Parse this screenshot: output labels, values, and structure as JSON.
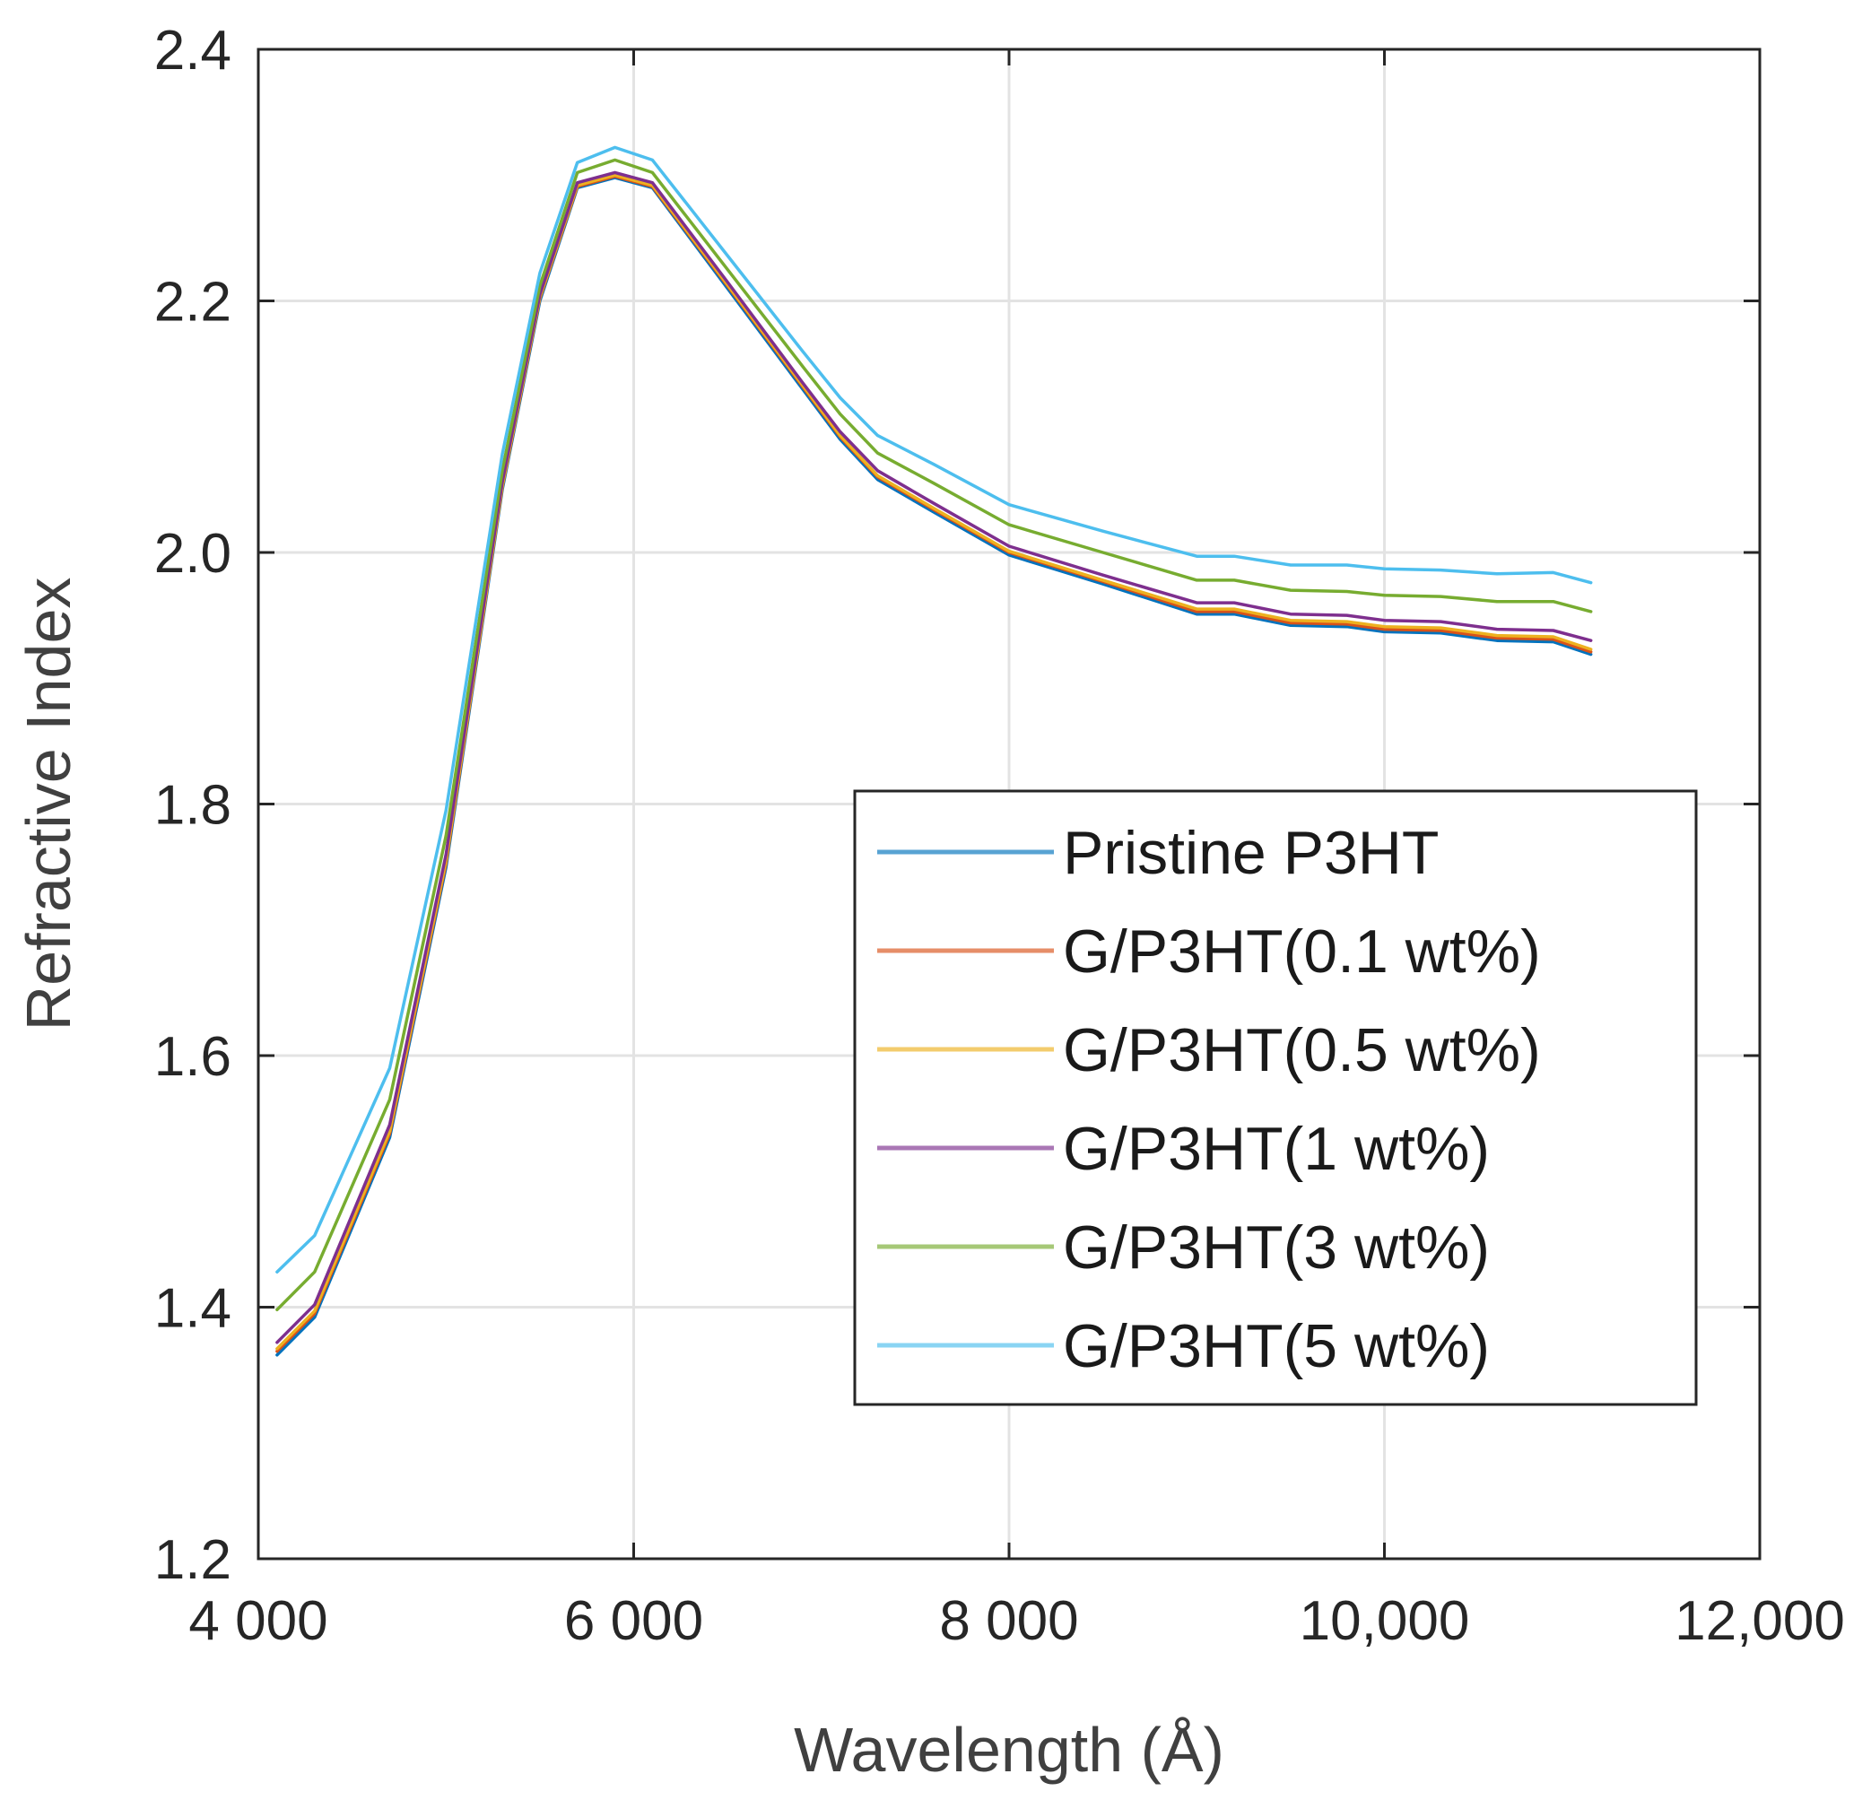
{
  "chart_data": {
    "type": "line",
    "title": "",
    "xlabel": "Wavelength (Å)",
    "ylabel": "Refractive Index",
    "xlim": [
      4000,
      12000
    ],
    "ylim": [
      1.2,
      2.4
    ],
    "xticks": [
      4000,
      6000,
      8000,
      10000,
      12000
    ],
    "xtick_labels": [
      "4 000",
      "6 000",
      "8 000",
      "10,000",
      "12,000"
    ],
    "yticks": [
      1.2,
      1.4,
      1.6,
      1.8,
      2.0,
      2.2,
      2.4
    ],
    "ytick_labels": [
      "1.2",
      "1.4",
      "1.6",
      "1.8",
      "2.0",
      "2.2",
      "2.4"
    ],
    "grid": true,
    "legend_position": "lower-right",
    "x": [
      4100,
      4300,
      4700,
      5000,
      5300,
      5500,
      5700,
      5900,
      6100,
      6500,
      6900,
      7100,
      7300,
      7600,
      8000,
      8500,
      9000,
      9200,
      9500,
      9800,
      10000,
      10300,
      10600,
      10900,
      11100
    ],
    "series": [
      {
        "name": "Pristine P3HT",
        "color": "#0072BD",
        "values": [
          1.362,
          1.392,
          1.535,
          1.75,
          2.05,
          2.2,
          2.29,
          2.298,
          2.29,
          2.21,
          2.13,
          2.09,
          2.058,
          2.032,
          1.998,
          1.975,
          1.951,
          1.951,
          1.942,
          1.941,
          1.937,
          1.936,
          1.93,
          1.929,
          1.919
        ]
      },
      {
        "name": "G/P3HT(0.1 wt%)",
        "color": "#D95319",
        "values": [
          1.365,
          1.395,
          1.538,
          1.753,
          2.052,
          2.202,
          2.291,
          2.299,
          2.291,
          2.212,
          2.132,
          2.092,
          2.06,
          2.034,
          2.0,
          1.977,
          1.953,
          1.953,
          1.944,
          1.943,
          1.939,
          1.938,
          1.932,
          1.931,
          1.921
        ]
      },
      {
        "name": "G/P3HT(0.5 wt%)",
        "color": "#EDB120",
        "values": [
          1.367,
          1.397,
          1.54,
          1.755,
          2.053,
          2.203,
          2.292,
          2.3,
          2.292,
          2.213,
          2.133,
          2.093,
          2.061,
          2.035,
          2.001,
          1.978,
          1.955,
          1.955,
          1.946,
          1.945,
          1.941,
          1.94,
          1.934,
          1.933,
          1.923
        ]
      },
      {
        "name": "G/P3HT(1 wt%)",
        "color": "#7E2F8E",
        "values": [
          1.372,
          1.402,
          1.545,
          1.76,
          2.056,
          2.205,
          2.294,
          2.302,
          2.294,
          2.215,
          2.135,
          2.096,
          2.065,
          2.039,
          2.005,
          1.982,
          1.96,
          1.96,
          1.951,
          1.95,
          1.946,
          1.945,
          1.939,
          1.938,
          1.93
        ]
      },
      {
        "name": "G/P3HT(3 wt%)",
        "color": "#77AC30",
        "values": [
          1.398,
          1.428,
          1.565,
          1.775,
          2.065,
          2.212,
          2.302,
          2.312,
          2.302,
          2.225,
          2.148,
          2.11,
          2.079,
          2.055,
          2.022,
          2.0,
          1.978,
          1.978,
          1.97,
          1.969,
          1.966,
          1.965,
          1.961,
          1.961,
          1.953
        ]
      },
      {
        "name": "G/P3HT(5 wt%)",
        "color": "#4DBEEE",
        "values": [
          1.428,
          1.457,
          1.59,
          1.795,
          2.078,
          2.222,
          2.31,
          2.322,
          2.312,
          2.236,
          2.16,
          2.123,
          2.093,
          2.07,
          2.038,
          2.017,
          1.997,
          1.997,
          1.99,
          1.99,
          1.987,
          1.986,
          1.983,
          1.984,
          1.976
        ]
      }
    ]
  }
}
